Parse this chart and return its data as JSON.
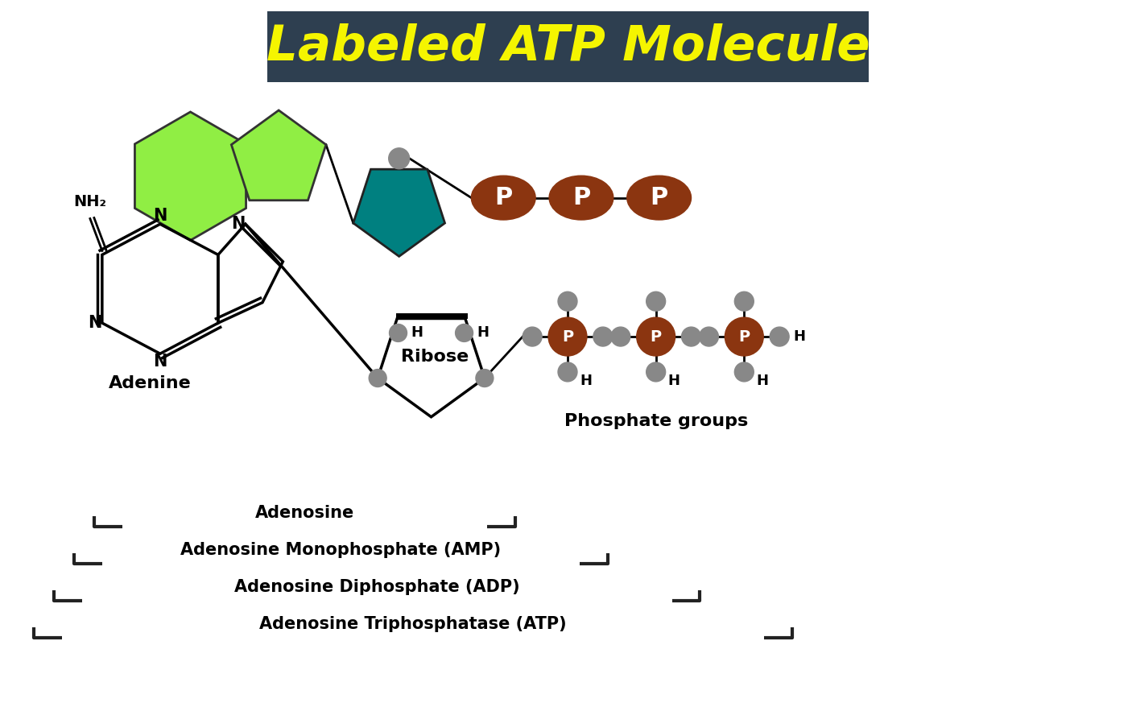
{
  "title": "Labeled ATP Molecule",
  "title_bg": "#2e3f50",
  "title_color": "#f5f500",
  "bg_color": "#ffffff",
  "green_light": "#90ee44",
  "green_dark": "#008080",
  "brown_p": "#8B3510",
  "gray_atom": "#888888",
  "bracket_color": "#222222",
  "adenine_label": "Adenine",
  "ribose_label": "Ribose",
  "phosphate_label": "Phosphate groups",
  "bottom_labels": [
    [
      "Adenosine",
      1.05,
      6.35
    ],
    [
      "Adenosine Monophosphate (AMP)",
      0.8,
      7.55
    ],
    [
      "Adenosine Diphosphate (ADP)",
      0.55,
      8.75
    ],
    [
      "Adenosine Triphosphatase (ATP)",
      0.3,
      9.95
    ]
  ]
}
